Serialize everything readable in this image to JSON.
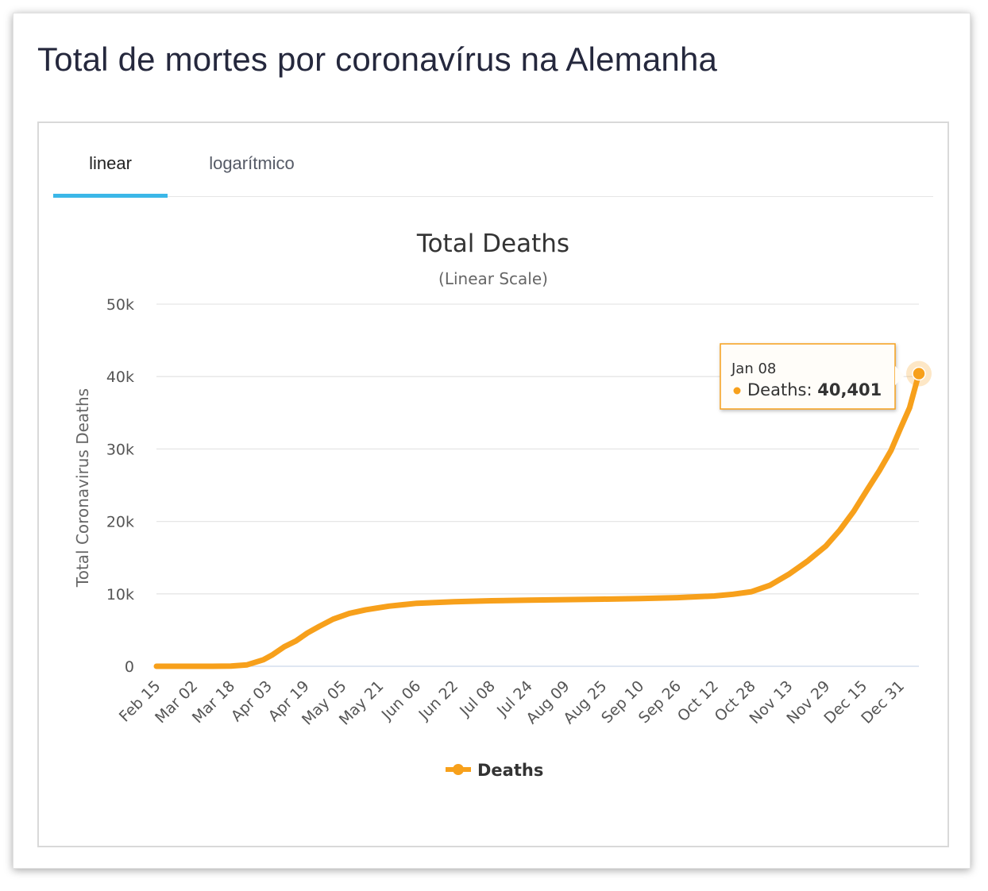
{
  "page": {
    "title": "Total de mortes por coronavírus na Alemanha"
  },
  "tabs": [
    {
      "label": "linear",
      "active": true
    },
    {
      "label": "logarítmico",
      "active": false
    }
  ],
  "colors": {
    "series": "#f7a01b",
    "tab_underline": "#3bb7e8",
    "grid": "#e6e6e6"
  },
  "chart_data": {
    "type": "line",
    "title": "Total Deaths",
    "subtitle": "(Linear Scale)",
    "ylabel": "Total Coronavirus Deaths",
    "xlabel": "",
    "ylim": [
      0,
      50000
    ],
    "yticks": [
      0,
      10000,
      20000,
      30000,
      40000,
      50000
    ],
    "ytick_labels": [
      "0",
      "10k",
      "20k",
      "30k",
      "40k",
      "50k"
    ],
    "x_tick_labels": [
      "Feb 15",
      "Mar 02",
      "Mar 18",
      "Apr 03",
      "Apr 19",
      "May 05",
      "May 21",
      "Jun 06",
      "Jun 22",
      "Jul 08",
      "Jul 24",
      "Aug 09",
      "Aug 25",
      "Sep 10",
      "Sep 26",
      "Oct 12",
      "Oct 28",
      "Nov 13",
      "Nov 29",
      "Dec 15",
      "Dec 31"
    ],
    "x_tick_dates": [
      "2020-02-15",
      "2020-03-02",
      "2020-03-18",
      "2020-04-03",
      "2020-04-19",
      "2020-05-05",
      "2020-05-21",
      "2020-06-06",
      "2020-06-22",
      "2020-07-08",
      "2020-07-24",
      "2020-08-09",
      "2020-08-25",
      "2020-09-10",
      "2020-09-26",
      "2020-10-12",
      "2020-10-28",
      "2020-11-13",
      "2020-11-29",
      "2020-12-15",
      "2020-12-31"
    ],
    "grid": true,
    "legend": {
      "position": "bottom-center"
    },
    "series": [
      {
        "name": "Deaths",
        "points": [
          [
            "2020-02-15",
            0
          ],
          [
            "2020-03-10",
            2
          ],
          [
            "2020-03-18",
            28
          ],
          [
            "2020-03-25",
            200
          ],
          [
            "2020-04-01",
            900
          ],
          [
            "2020-04-05",
            1600
          ],
          [
            "2020-04-10",
            2700
          ],
          [
            "2020-04-15",
            3500
          ],
          [
            "2020-04-20",
            4600
          ],
          [
            "2020-04-25",
            5500
          ],
          [
            "2020-05-01",
            6500
          ],
          [
            "2020-05-08",
            7300
          ],
          [
            "2020-05-15",
            7800
          ],
          [
            "2020-05-25",
            8300
          ],
          [
            "2020-06-06",
            8700
          ],
          [
            "2020-06-22",
            8900
          ],
          [
            "2020-07-08",
            9050
          ],
          [
            "2020-07-24",
            9120
          ],
          [
            "2020-08-09",
            9200
          ],
          [
            "2020-08-25",
            9270
          ],
          [
            "2020-09-10",
            9350
          ],
          [
            "2020-09-26",
            9470
          ],
          [
            "2020-10-12",
            9700
          ],
          [
            "2020-10-20",
            9950
          ],
          [
            "2020-10-28",
            10300
          ],
          [
            "2020-11-05",
            11200
          ],
          [
            "2020-11-13",
            12700
          ],
          [
            "2020-11-21",
            14500
          ],
          [
            "2020-11-29",
            16600
          ],
          [
            "2020-12-05",
            18800
          ],
          [
            "2020-12-11",
            21400
          ],
          [
            "2020-12-17",
            24500
          ],
          [
            "2020-12-22",
            27000
          ],
          [
            "2020-12-27",
            29800
          ],
          [
            "2020-12-31",
            32800
          ],
          [
            "2021-01-04",
            35700
          ],
          [
            "2021-01-08",
            40401
          ]
        ]
      }
    ],
    "tooltip": {
      "date": "Jan 08",
      "series_label": "Deaths",
      "value_text": "40,401"
    }
  }
}
